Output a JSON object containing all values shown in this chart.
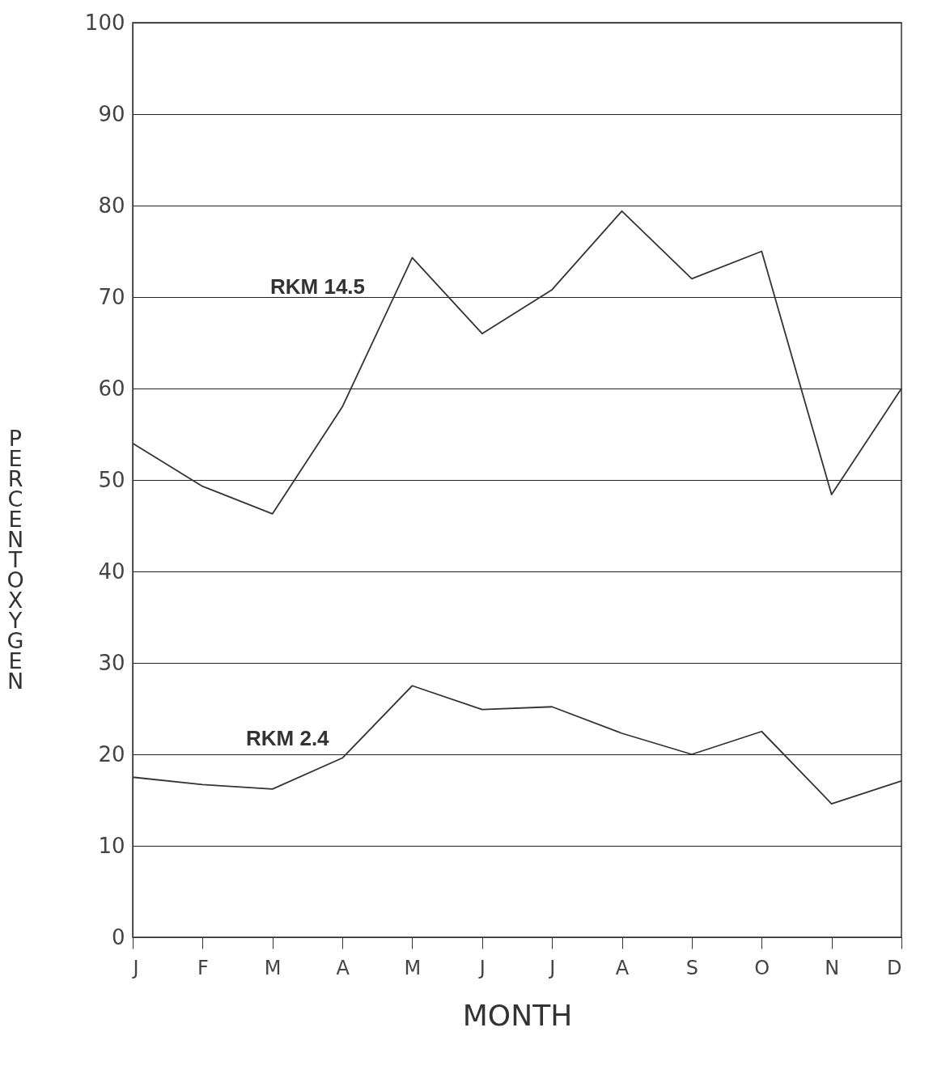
{
  "chart_data": {
    "type": "line",
    "xlabel": "MONTH",
    "ylabel": "PERCENT OXYGEN",
    "categories": [
      "J",
      "F",
      "M",
      "A",
      "M",
      "J",
      "J",
      "A",
      "S",
      "O",
      "N",
      "D"
    ],
    "series": [
      {
        "name": "RKM 14.5",
        "color": "#333333",
        "values": [
          54,
          49.3,
          46.3,
          58,
          74.3,
          66,
          70.8,
          79.4,
          72,
          75,
          48.4,
          60
        ]
      },
      {
        "name": "RKM 2.4",
        "color": "#333333",
        "values": [
          17.5,
          16.7,
          16.2,
          19.6,
          27.5,
          24.9,
          25.2,
          22.3,
          20,
          22.5,
          14.6,
          17.1
        ]
      }
    ],
    "ylim": [
      0,
      100
    ],
    "yticks": [
      0,
      10,
      20,
      30,
      40,
      50,
      60,
      70,
      80,
      90,
      100
    ],
    "grid": "y",
    "line_style": "solid",
    "marker": "none"
  }
}
